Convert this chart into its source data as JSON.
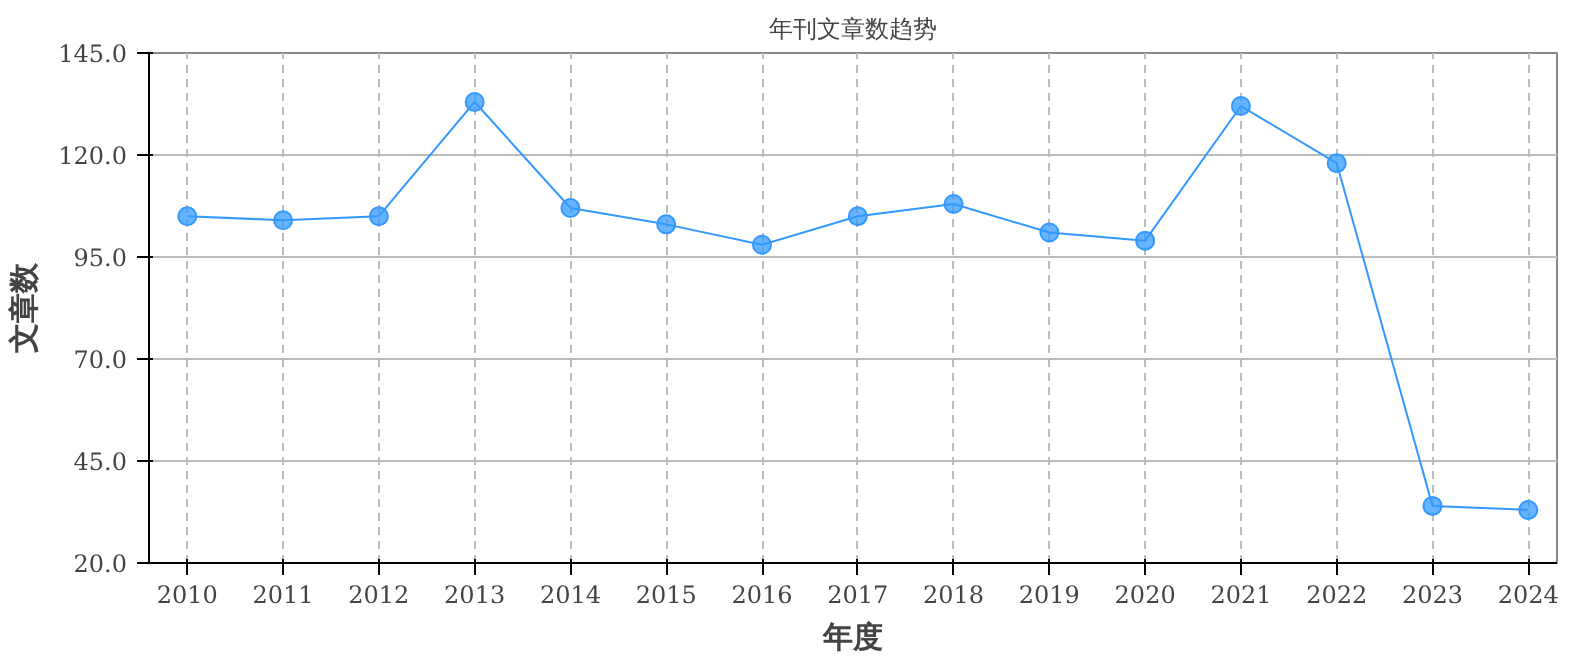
{
  "chart_data": {
    "type": "line",
    "title": "年刊文章数趋势",
    "xlabel": "年度",
    "ylabel": "文章数",
    "x": [
      2010,
      2011,
      2012,
      2013,
      2014,
      2015,
      2016,
      2017,
      2018,
      2019,
      2020,
      2021,
      2022,
      2023,
      2024
    ],
    "series": [
      {
        "color": "#3399ff",
        "values": [
          105,
          104,
          105,
          133,
          107,
          103,
          98,
          105,
          108,
          101,
          99,
          132,
          118,
          34,
          33
        ]
      }
    ],
    "xlim": [
      2009.6,
      2024.3
    ],
    "xticks": [
      2010,
      2011,
      2012,
      2013,
      2014,
      2015,
      2016,
      2017,
      2018,
      2019,
      2020,
      2021,
      2022,
      2023,
      2024
    ],
    "ylim": [
      20,
      145
    ],
    "yticks": [
      {
        "value": 20,
        "label": "20.0"
      },
      {
        "value": 45,
        "label": "45.0"
      },
      {
        "value": 70,
        "label": "70.0"
      },
      {
        "value": 95,
        "label": "95.0"
      },
      {
        "value": 120,
        "label": "120.0"
      },
      {
        "value": 145,
        "label": "145.0"
      }
    ],
    "grid": true,
    "marker": "circle",
    "line_style": "solid"
  }
}
